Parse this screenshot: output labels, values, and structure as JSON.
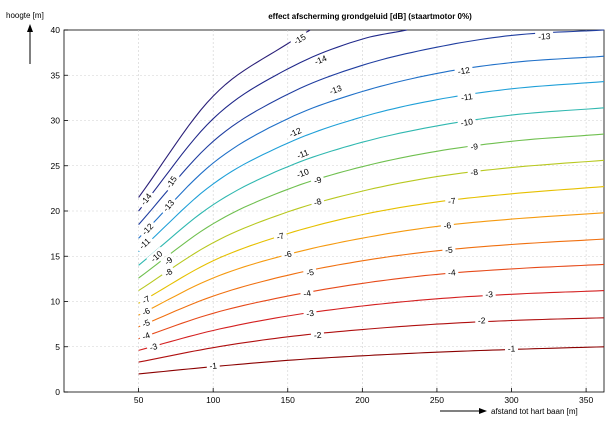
{
  "chart_data": {
    "type": "line",
    "title": "effect afscherming grondgeluid [dB] (staartmotor 0%)",
    "xlabel": "afstand tot hart baan [m]",
    "ylabel": "hoogte [m]",
    "xlim": [
      0,
      362
    ],
    "ylim": [
      0,
      40
    ],
    "xticks": [
      50,
      100,
      150,
      200,
      250,
      300,
      350
    ],
    "yticks": [
      0,
      5,
      10,
      15,
      20,
      25,
      30,
      35,
      40
    ],
    "grid": true,
    "legend": "none",
    "series": [
      {
        "level": -1,
        "color": "#8b0000",
        "points": [
          [
            50,
            2.0
          ],
          [
            100,
            2.8
          ],
          [
            150,
            3.5
          ],
          [
            200,
            4.0
          ],
          [
            250,
            4.4
          ],
          [
            300,
            4.7
          ],
          [
            362,
            5.0
          ]
        ],
        "labels": [
          [
            100,
            2.9
          ],
          [
            300,
            4.8
          ]
        ]
      },
      {
        "level": -2,
        "color": "#b01010",
        "points": [
          [
            50,
            3.3
          ],
          [
            100,
            4.9
          ],
          [
            150,
            6.1
          ],
          [
            200,
            6.9
          ],
          [
            250,
            7.5
          ],
          [
            300,
            7.9
          ],
          [
            362,
            8.2
          ]
        ],
        "labels": [
          [
            170,
            6.3
          ],
          [
            280,
            7.9
          ]
        ]
      },
      {
        "level": -3,
        "color": "#d42020",
        "points": [
          [
            50,
            4.6
          ],
          [
            100,
            6.8
          ],
          [
            150,
            8.4
          ],
          [
            200,
            9.5
          ],
          [
            250,
            10.3
          ],
          [
            300,
            10.8
          ],
          [
            362,
            11.2
          ]
        ],
        "labels": [
          [
            60,
            5.0
          ],
          [
            165,
            8.7
          ],
          [
            285,
            10.8
          ]
        ]
      },
      {
        "level": -4,
        "color": "#e64a1a",
        "points": [
          [
            50,
            5.9
          ],
          [
            100,
            8.7
          ],
          [
            150,
            10.6
          ],
          [
            200,
            12.0
          ],
          [
            250,
            13.0
          ],
          [
            300,
            13.6
          ],
          [
            362,
            14.1
          ]
        ],
        "labels": [
          [
            55,
            6.2
          ],
          [
            163,
            10.9
          ],
          [
            260,
            13.2
          ]
        ]
      },
      {
        "level": -5,
        "color": "#f07010",
        "points": [
          [
            50,
            7.2
          ],
          [
            100,
            10.6
          ],
          [
            150,
            12.9
          ],
          [
            200,
            14.5
          ],
          [
            250,
            15.6
          ],
          [
            300,
            16.3
          ],
          [
            362,
            16.9
          ]
        ],
        "labels": [
          [
            55,
            7.6
          ],
          [
            165,
            13.2
          ],
          [
            258,
            15.7
          ]
        ]
      },
      {
        "level": -6,
        "color": "#f59a10",
        "points": [
          [
            50,
            8.5
          ],
          [
            100,
            12.6
          ],
          [
            150,
            15.2
          ],
          [
            200,
            17.0
          ],
          [
            250,
            18.3
          ],
          [
            300,
            19.1
          ],
          [
            362,
            19.8
          ]
        ],
        "labels": [
          [
            55,
            8.9
          ],
          [
            150,
            15.2
          ],
          [
            257,
            18.4
          ]
        ]
      },
      {
        "level": -7,
        "color": "#e6c000",
        "points": [
          [
            50,
            9.8
          ],
          [
            100,
            14.5
          ],
          [
            150,
            17.5
          ],
          [
            200,
            19.6
          ],
          [
            250,
            21.0
          ],
          [
            300,
            21.9
          ],
          [
            362,
            22.7
          ]
        ],
        "labels": [
          [
            55,
            10.2
          ],
          [
            145,
            17.2
          ],
          [
            260,
            21.1
          ]
        ]
      },
      {
        "level": -8,
        "color": "#b8c820",
        "points": [
          [
            50,
            11.2
          ],
          [
            100,
            16.5
          ],
          [
            150,
            19.9
          ],
          [
            200,
            22.2
          ],
          [
            250,
            23.8
          ],
          [
            300,
            24.8
          ],
          [
            362,
            25.6
          ]
        ],
        "labels": [
          [
            70,
            13.2
          ],
          [
            170,
            21.0
          ],
          [
            275,
            24.3
          ]
        ]
      },
      {
        "level": -9,
        "color": "#70c050",
        "points": [
          [
            50,
            12.6
          ],
          [
            100,
            18.6
          ],
          [
            150,
            22.4
          ],
          [
            200,
            24.9
          ],
          [
            250,
            26.6
          ],
          [
            300,
            27.7
          ],
          [
            362,
            28.5
          ]
        ],
        "labels": [
          [
            70,
            14.5
          ],
          [
            170,
            23.4
          ],
          [
            275,
            27.1
          ]
        ]
      },
      {
        "level": -10,
        "color": "#30b8b0",
        "points": [
          [
            50,
            14.0
          ],
          [
            100,
            20.7
          ],
          [
            150,
            24.9
          ],
          [
            200,
            27.6
          ],
          [
            250,
            29.4
          ],
          [
            300,
            30.6
          ],
          [
            362,
            31.4
          ]
        ],
        "labels": [
          [
            62,
            15.0
          ],
          [
            160,
            24.2
          ],
          [
            270,
            29.8
          ]
        ]
      },
      {
        "level": -11,
        "color": "#20a0d8",
        "points": [
          [
            50,
            15.5
          ],
          [
            100,
            23.0
          ],
          [
            150,
            27.5
          ],
          [
            200,
            30.4
          ],
          [
            250,
            32.3
          ],
          [
            300,
            33.5
          ],
          [
            362,
            34.3
          ]
        ],
        "labels": [
          [
            54,
            16.4
          ],
          [
            160,
            26.3
          ],
          [
            270,
            32.6
          ]
        ]
      },
      {
        "level": -12,
        "color": "#2070c8",
        "points": [
          [
            50,
            17.0
          ],
          [
            100,
            25.3
          ],
          [
            150,
            30.2
          ],
          [
            200,
            33.2
          ],
          [
            250,
            35.2
          ],
          [
            300,
            36.4
          ],
          [
            362,
            37.1
          ]
        ],
        "labels": [
          [
            56,
            18.0
          ],
          [
            155,
            28.7
          ],
          [
            268,
            35.5
          ]
        ]
      },
      {
        "level": -13,
        "color": "#203ea0",
        "points": [
          [
            50,
            18.5
          ],
          [
            100,
            27.7
          ],
          [
            150,
            32.9
          ],
          [
            200,
            36.1
          ],
          [
            250,
            38.1
          ],
          [
            300,
            39.4
          ],
          [
            362,
            40.0
          ]
        ],
        "labels": [
          [
            70,
            20.6
          ],
          [
            182,
            33.4
          ],
          [
            322,
            39.3
          ]
        ]
      },
      {
        "level": -14,
        "color": "#20288a",
        "points": [
          [
            50,
            20.0
          ],
          [
            100,
            30.2
          ],
          [
            150,
            35.7
          ],
          [
            200,
            39.0
          ],
          [
            230,
            40.0
          ]
        ],
        "labels": [
          [
            55,
            21.3
          ],
          [
            172,
            36.7
          ]
        ]
      },
      {
        "level": -15,
        "color": "#2a1f78",
        "points": [
          [
            50,
            21.5
          ],
          [
            100,
            32.7
          ],
          [
            150,
            38.5
          ],
          [
            165,
            40.0
          ]
        ],
        "labels": [
          [
            72,
            23.2
          ],
          [
            158,
            39.0
          ]
        ]
      }
    ]
  }
}
